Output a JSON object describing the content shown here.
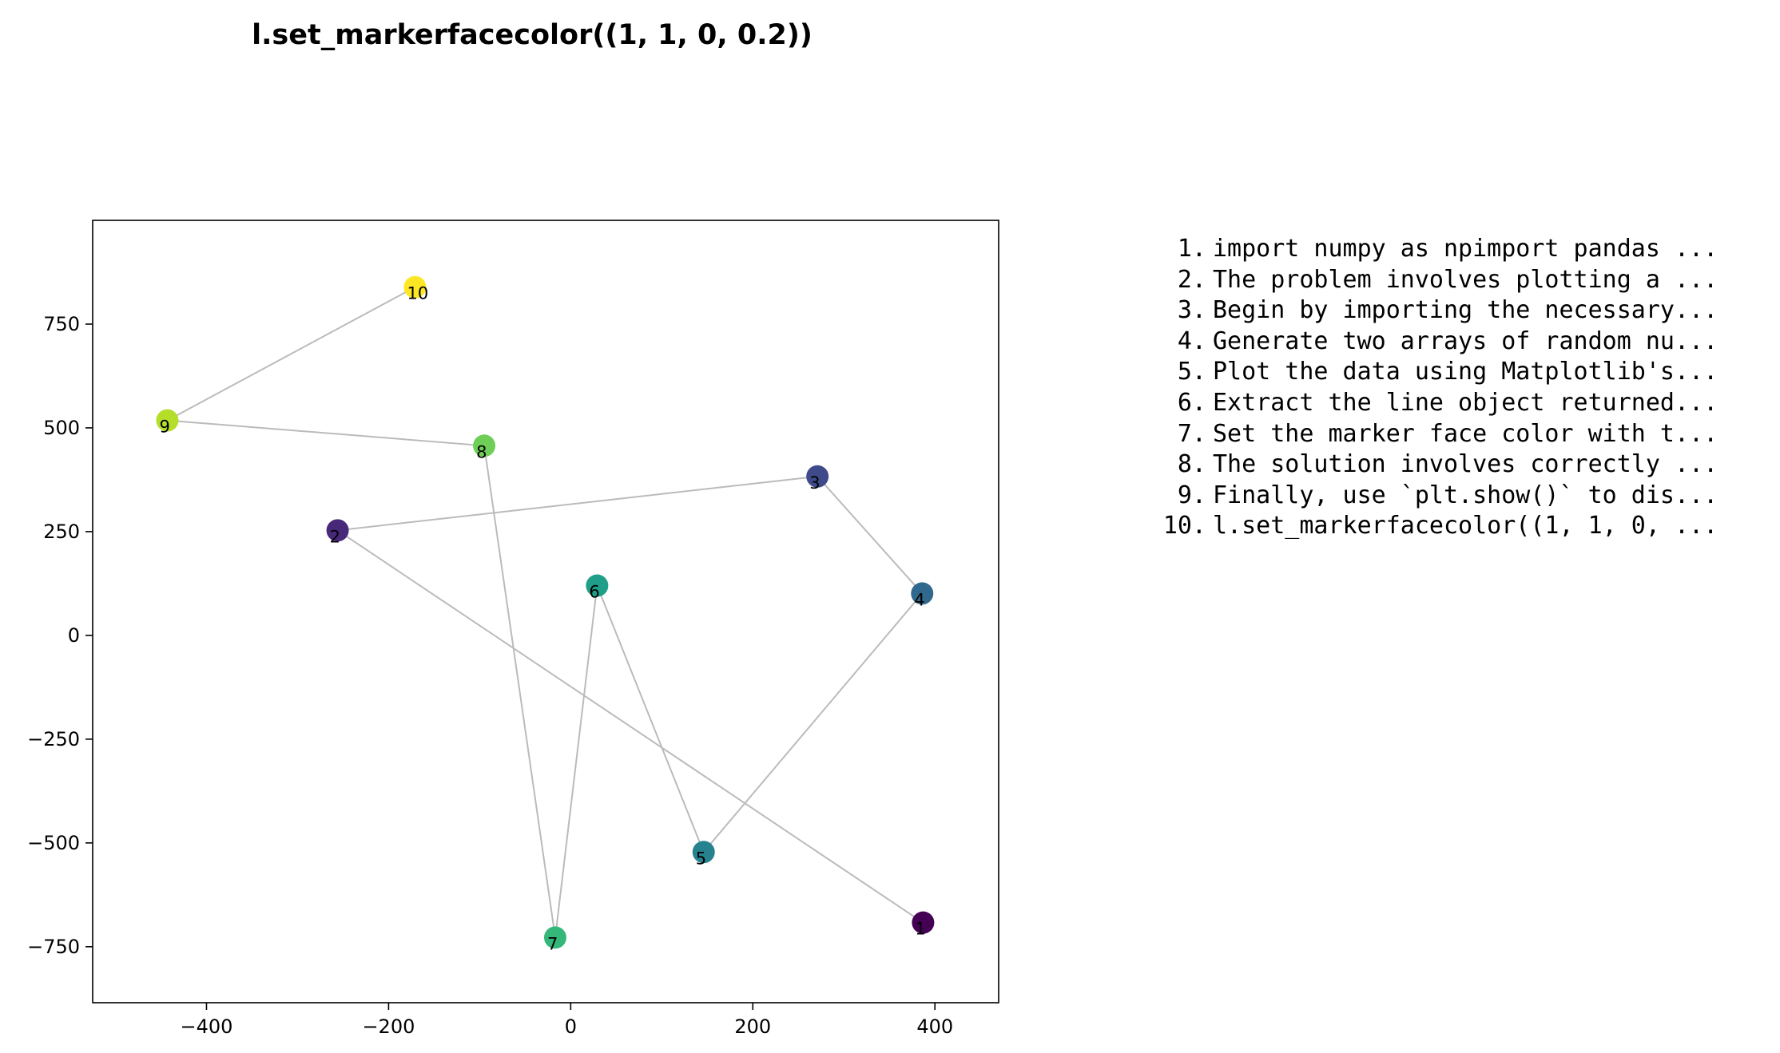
{
  "chart_data": {
    "type": "scatter",
    "title": "l.set_markerfacecolor((1, 1, 0, 0.2))",
    "xlabel": "",
    "ylabel": "",
    "xlim": [
      -525,
      470
    ],
    "ylim": [
      -885,
      1000
    ],
    "xticks": [
      -400,
      -200,
      0,
      200,
      400
    ],
    "xtick_labels": [
      "−400",
      "−200",
      "0",
      "200",
      "400"
    ],
    "yticks": [
      -750,
      -500,
      -250,
      0,
      250,
      500,
      750
    ],
    "ytick_labels": [
      "−750",
      "−500",
      "−250",
      "0",
      "250",
      "500",
      "750"
    ],
    "grid": false,
    "line_color": "#bbbbbb",
    "points": [
      {
        "label": "1",
        "x": 387,
        "y": -692,
        "color": "#440154"
      },
      {
        "label": "2",
        "x": -256,
        "y": 253,
        "color": "#482878"
      },
      {
        "label": "3",
        "x": 271,
        "y": 383,
        "color": "#3e4a89"
      },
      {
        "label": "4",
        "x": 386,
        "y": 101,
        "color": "#31688e"
      },
      {
        "label": "5",
        "x": 146,
        "y": -522,
        "color": "#26828e"
      },
      {
        "label": "6",
        "x": 29,
        "y": 120,
        "color": "#1f9e89"
      },
      {
        "label": "7",
        "x": -17,
        "y": -728,
        "color": "#35b779"
      },
      {
        "label": "8",
        "x": -95,
        "y": 457,
        "color": "#6ece58"
      },
      {
        "label": "9",
        "x": -443,
        "y": 518,
        "color": "#b5de2b"
      },
      {
        "label": "10",
        "x": -171,
        "y": 839,
        "color": "#fde725"
      }
    ]
  },
  "steps": [
    {
      "num": "1.",
      "text": "import numpy as npimport pandas ..."
    },
    {
      "num": "2.",
      "text": "The problem involves plotting a ..."
    },
    {
      "num": "3.",
      "text": "Begin by importing the necessary..."
    },
    {
      "num": "4.",
      "text": "Generate two arrays of random nu..."
    },
    {
      "num": "5.",
      "text": "Plot the data using Matplotlib's..."
    },
    {
      "num": "6.",
      "text": "Extract the line object returned..."
    },
    {
      "num": "7.",
      "text": "Set the marker face color with t..."
    },
    {
      "num": "8.",
      "text": "The solution involves correctly ..."
    },
    {
      "num": "9.",
      "text": "Finally, use `plt.show()` to dis..."
    },
    {
      "num": "10.",
      "text": "l.set_markerfacecolor((1, 1, 0, ..."
    }
  ]
}
